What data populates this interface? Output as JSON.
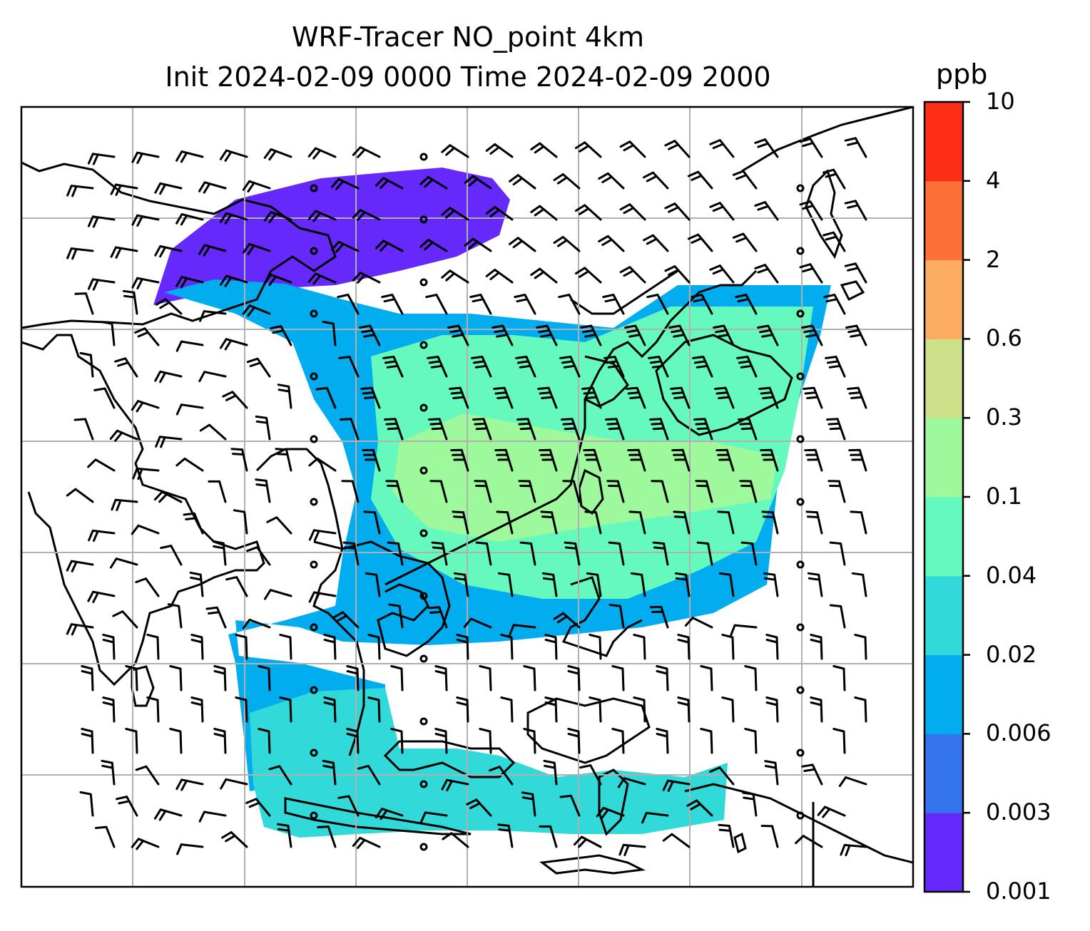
{
  "title": {
    "line1": "WRF-Tracer NO_point 4km",
    "line2": "Init 2024-02-09 0000 Time 2024-02-09 2000"
  },
  "colorbar": {
    "unit": "ppb",
    "levels": [
      "0.001",
      "0.003",
      "0.006",
      "0.02",
      "0.04",
      "0.1",
      "0.3",
      "0.6",
      "2",
      "4",
      "10"
    ],
    "colors": [
      "#6629fb",
      "#3574ef",
      "#02adef",
      "#31d9d9",
      "#66f9bd",
      "#9ef99c",
      "#cfe08a",
      "#fdad61",
      "#ff7039",
      "#fd2d16"
    ]
  },
  "map": {
    "gridlines": true,
    "coastline_color": "#000000",
    "gridline_color": "#b0b0b0",
    "wind_barbs": true
  }
}
